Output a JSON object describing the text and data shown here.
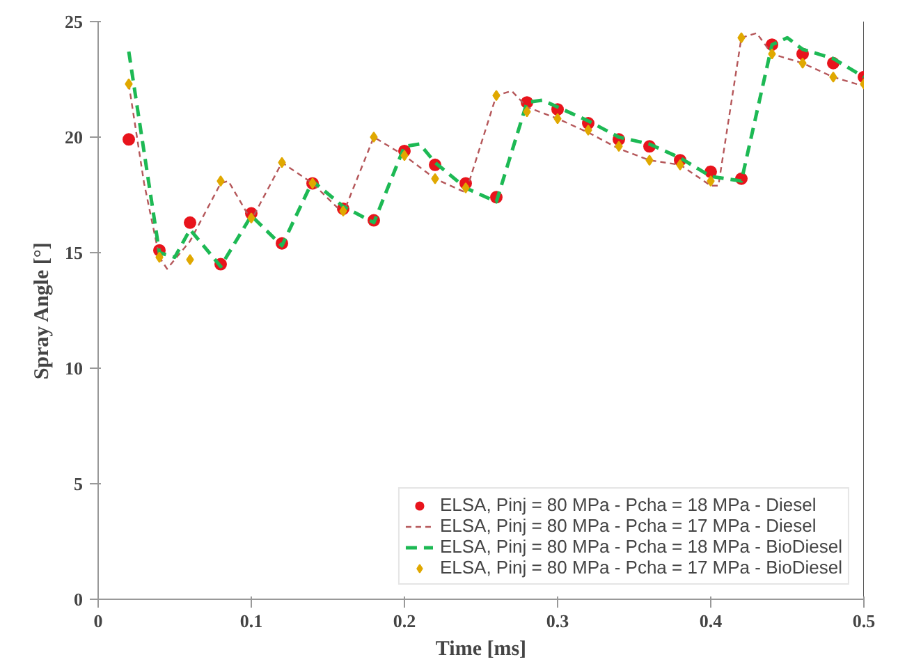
{
  "chart_data": {
    "type": "line",
    "xlabel": "Time [ms]",
    "ylabel": "Spray Angle [°]",
    "xlim": [
      0,
      0.5
    ],
    "ylim": [
      0,
      25
    ],
    "xticks": [
      0,
      0.1,
      0.2,
      0.3,
      0.4,
      0.5
    ],
    "yticks": [
      0,
      5,
      10,
      15,
      20,
      25
    ],
    "grid": false,
    "legend": "bottom right",
    "series": [
      {
        "name": "ELSA, Pinj = 80 MPa - Pcha = 18 MPa - Diesel",
        "type": "scatter",
        "marker": "circle",
        "color": "#e8141c",
        "x": [
          0.02,
          0.04,
          0.06,
          0.08,
          0.1,
          0.12,
          0.14,
          0.16,
          0.18,
          0.2,
          0.22,
          0.24,
          0.26,
          0.28,
          0.3,
          0.32,
          0.34,
          0.36,
          0.38,
          0.4,
          0.42,
          0.44,
          0.46,
          0.48,
          0.5
        ],
        "values": [
          19.9,
          15.1,
          16.3,
          14.5,
          16.7,
          15.4,
          18.0,
          16.9,
          16.4,
          19.4,
          18.8,
          18.0,
          17.4,
          21.5,
          21.2,
          20.6,
          19.9,
          19.6,
          19.0,
          18.5,
          18.2,
          24.0,
          23.6,
          23.2,
          22.6
        ]
      },
      {
        "name": "ELSA, Pinj = 80 MPa - Pcha = 17 MPa - Diesel",
        "line_style": "dashed",
        "marker": "none",
        "color": "#b5575a",
        "x": [
          0.02,
          0.03,
          0.04,
          0.045,
          0.06,
          0.08,
          0.085,
          0.1,
          0.12,
          0.14,
          0.16,
          0.18,
          0.2,
          0.22,
          0.24,
          0.26,
          0.27,
          0.28,
          0.3,
          0.32,
          0.34,
          0.36,
          0.38,
          0.4,
          0.405,
          0.42,
          0.43,
          0.44,
          0.46,
          0.48,
          0.5
        ],
        "values": [
          22.3,
          18.0,
          14.8,
          14.3,
          15.5,
          18.0,
          18.1,
          16.4,
          18.9,
          18.0,
          16.7,
          20.0,
          19.2,
          18.2,
          17.6,
          21.8,
          22.0,
          21.3,
          20.8,
          20.2,
          19.5,
          19.0,
          18.8,
          17.9,
          17.9,
          24.3,
          24.5,
          23.6,
          23.2,
          22.6,
          22.2
        ]
      },
      {
        "name": "ELSA, Pinj = 80 MPa - Pcha = 18 MPa - BioDiesel",
        "line_style": "dashed",
        "marker": "none",
        "color": "#1db954",
        "x": [
          0.02,
          0.04,
          0.05,
          0.06,
          0.08,
          0.1,
          0.12,
          0.14,
          0.16,
          0.18,
          0.2,
          0.21,
          0.22,
          0.24,
          0.26,
          0.28,
          0.29,
          0.3,
          0.32,
          0.34,
          0.36,
          0.38,
          0.4,
          0.42,
          0.44,
          0.45,
          0.46,
          0.48,
          0.5
        ],
        "values": [
          23.7,
          15.0,
          14.8,
          16.0,
          14.4,
          16.6,
          15.3,
          18.1,
          17.0,
          16.3,
          19.6,
          19.7,
          18.9,
          17.8,
          17.2,
          21.5,
          21.6,
          21.3,
          20.7,
          20.0,
          19.7,
          19.1,
          18.3,
          18.1,
          24.0,
          24.3,
          23.8,
          23.4,
          22.6
        ]
      },
      {
        "name": "ELSA, Pinj = 80 MPa - Pcha = 17 MPa - BioDiesel",
        "type": "scatter",
        "marker": "diamond",
        "color": "#e0a800",
        "x": [
          0.02,
          0.04,
          0.06,
          0.08,
          0.1,
          0.12,
          0.14,
          0.16,
          0.18,
          0.2,
          0.22,
          0.24,
          0.26,
          0.28,
          0.3,
          0.32,
          0.34,
          0.36,
          0.38,
          0.4,
          0.42,
          0.44,
          0.46,
          0.48,
          0.5
        ],
        "values": [
          22.3,
          14.8,
          14.7,
          18.1,
          16.5,
          18.9,
          18.0,
          16.8,
          20.0,
          19.2,
          18.2,
          17.8,
          21.8,
          21.1,
          20.8,
          20.3,
          19.6,
          19.0,
          18.8,
          18.1,
          24.3,
          23.6,
          23.2,
          22.6,
          22.3
        ]
      }
    ]
  }
}
